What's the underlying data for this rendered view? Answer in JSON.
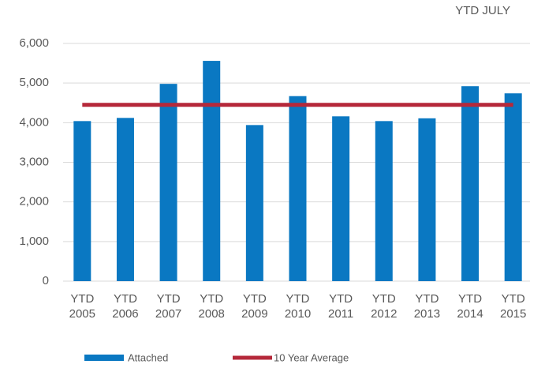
{
  "chart_data": {
    "type": "bar",
    "title": "YTD JULY",
    "categories": [
      "YTD 2005",
      "YTD 2006",
      "YTD 2007",
      "YTD 2008",
      "YTD 2009",
      "YTD 2010",
      "YTD 2011",
      "YTD 2012",
      "YTD 2013",
      "YTD 2014",
      "YTD 2015"
    ],
    "series": [
      {
        "name": "Attached",
        "color": "#0a78c2",
        "type": "bar",
        "values": [
          4040,
          4120,
          4980,
          5560,
          3940,
          4670,
          4160,
          4040,
          4110,
          4920,
          4740
        ]
      },
      {
        "name": "10 Year Average",
        "color": "#b5283a",
        "type": "line",
        "values": [
          4450,
          4450,
          4450,
          4450,
          4450,
          4450,
          4450,
          4450,
          4450,
          4450,
          4450
        ]
      }
    ],
    "ylim": [
      0,
      6000
    ],
    "yticks": [
      0,
      {
        "value": 1000,
        "label": "1,000"
      },
      {
        "value": 2000,
        "label": "2,000"
      },
      {
        "value": 3000,
        "label": "3,000"
      },
      {
        "value": 4000,
        "label": "4,000"
      },
      {
        "value": 5000,
        "label": "5,000"
      },
      {
        "value": 6000,
        "label": "6,000"
      }
    ],
    "grid": true
  }
}
